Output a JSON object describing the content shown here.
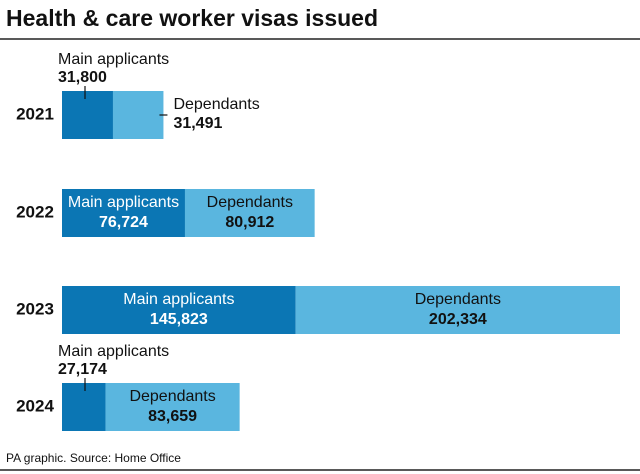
{
  "chart_data": {
    "type": "stacked-bar-horizontal",
    "title": "Health & care worker visas issued",
    "source": "PA graphic. Source: Home Office",
    "categories": [
      "2021",
      "2022",
      "2023",
      "2024"
    ],
    "series": [
      {
        "name": "Main applicants",
        "color": "#0b76b4",
        "values": [
          31800,
          76724,
          145823,
          27174
        ],
        "value_labels": [
          "31,800",
          "76,724",
          "145,823",
          "27,174"
        ]
      },
      {
        "name": "Dependants",
        "color": "#5ab6df",
        "values": [
          31491,
          80912,
          202334,
          83659
        ],
        "value_labels": [
          "31,491",
          "80,912",
          "202,334",
          "83,659"
        ]
      }
    ]
  }
}
